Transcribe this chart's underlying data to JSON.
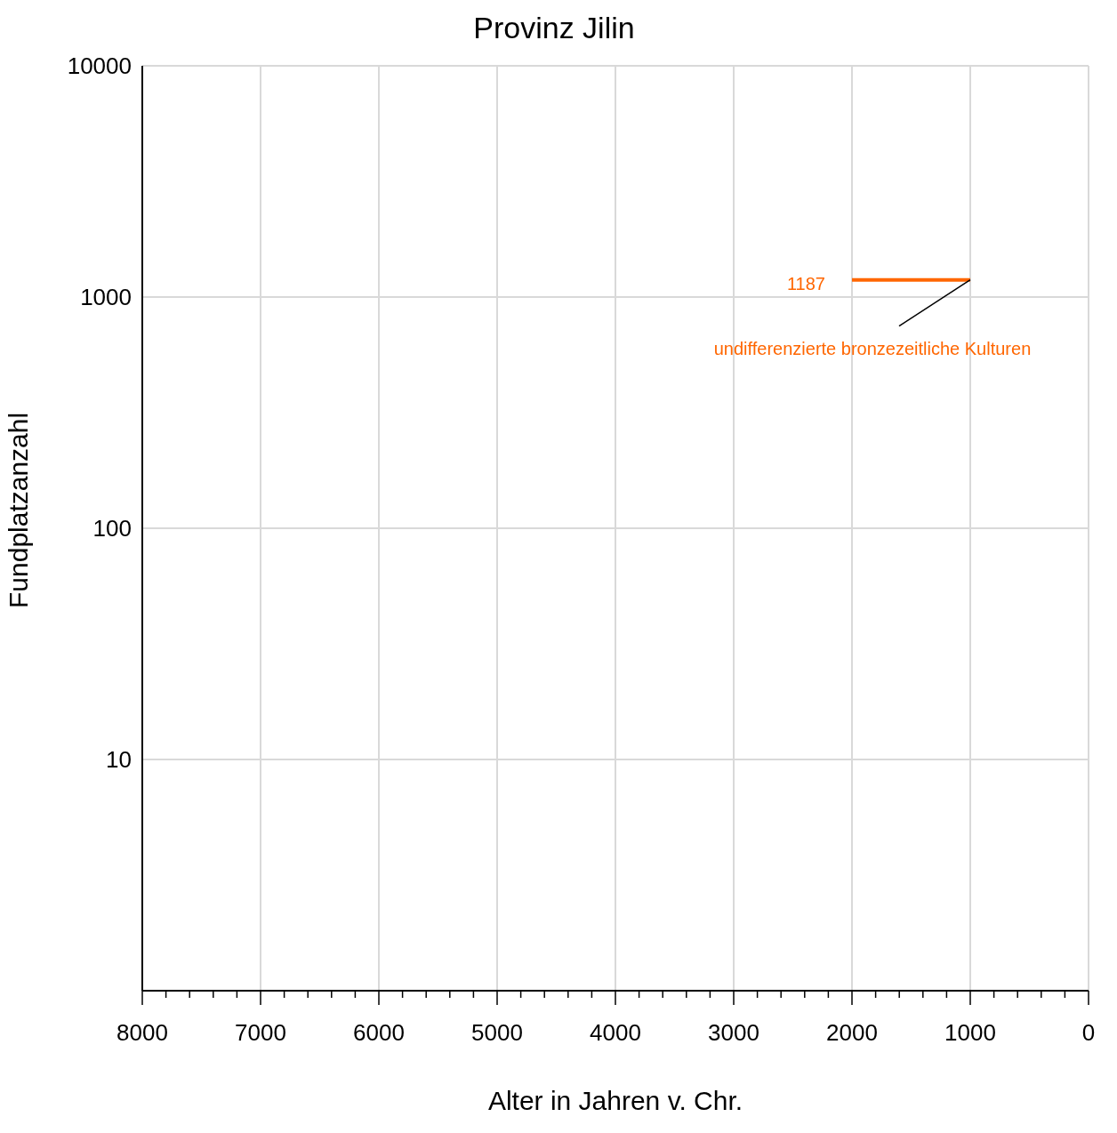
{
  "chart_data": {
    "type": "line",
    "title": "Provinz Jilin",
    "xlabel": "Alter in Jahren v. Chr.",
    "ylabel": "Fundplatzanzahl",
    "x": [
      2000,
      1000
    ],
    "series": [
      {
        "color": "#ff6600",
        "values": [
          1187,
          1187
        ],
        "value_labels": [
          "1187",
          null
        ]
      }
    ],
    "xlim": [
      8000,
      0
    ],
    "xticks": [
      8000,
      {
        "value": 7800,
        "label": null
      },
      {
        "value": 7600,
        "label": null
      },
      {
        "value": 7400,
        "label": null
      },
      {
        "value": 7200,
        "label": null
      },
      7000,
      {
        "value": 6800,
        "label": null
      },
      {
        "value": 6600,
        "label": null
      },
      {
        "value": 6400,
        "label": null
      },
      {
        "value": 6200,
        "label": null
      },
      6000,
      {
        "value": 5800,
        "label": null
      },
      {
        "value": 5600,
        "label": null
      },
      {
        "value": 5400,
        "label": null
      },
      {
        "value": 5200,
        "label": null
      },
      5000,
      {
        "value": 4800,
        "label": null
      },
      {
        "value": 4600,
        "label": null
      },
      {
        "value": 4400,
        "label": null
      },
      {
        "value": 4200,
        "label": null
      },
      4000,
      {
        "value": 3800,
        "label": null
      },
      {
        "value": 3600,
        "label": null
      },
      {
        "value": 3400,
        "label": null
      },
      {
        "value": 3200,
        "label": null
      },
      3000,
      {
        "value": 2800,
        "label": null
      },
      {
        "value": 2600,
        "label": null
      },
      {
        "value": 2400,
        "label": null
      },
      {
        "value": 2200,
        "label": null
      },
      2000,
      {
        "value": 1800,
        "label": null
      },
      {
        "value": 1600,
        "label": null
      },
      {
        "value": 1400,
        "label": null
      },
      {
        "value": 1200,
        "label": null
      },
      1000,
      {
        "value": 800,
        "label": null
      },
      {
        "value": 600,
        "label": null
      },
      {
        "value": 400,
        "label": null
      },
      {
        "value": 200,
        "label": null
      },
      0
    ],
    "ylim": [
      1,
      10000
    ],
    "yticks": [
      10,
      100,
      1000,
      10000
    ],
    "log": "y",
    "grid": true,
    "marker": "none",
    "line_style": "solid",
    "annotations": [
      {
        "text": "undifferenzierte bronzezeitliche Kulturen",
        "x": 1000,
        "y": 1187
      }
    ]
  }
}
